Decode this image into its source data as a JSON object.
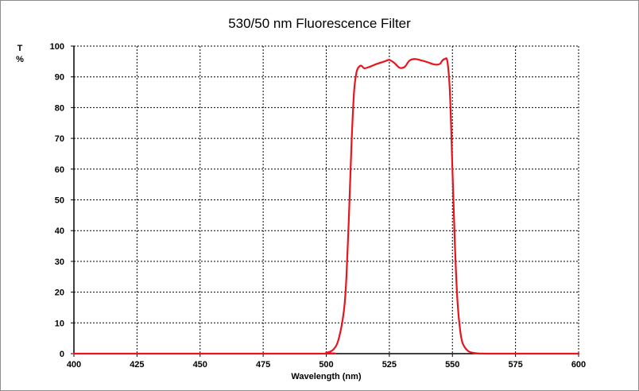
{
  "chart_data": {
    "type": "line",
    "title": "530/50 nm Fluorescence Filter",
    "xlabel": "Wavelength (nm)",
    "ylabel_line1": "T",
    "ylabel_line2": "%",
    "xlim": [
      400,
      600
    ],
    "ylim": [
      0,
      100
    ],
    "xticks": [
      400,
      425,
      450,
      475,
      500,
      525,
      550,
      575,
      600
    ],
    "yticks": [
      0,
      10,
      20,
      30,
      40,
      50,
      60,
      70,
      80,
      90,
      100
    ],
    "grid": true,
    "series": [
      {
        "color": "#e8141e",
        "x": [
          400,
          495,
          500,
          503,
          505,
          507,
          508,
          509,
          510,
          511,
          512,
          513,
          514,
          515,
          517,
          520,
          523,
          525,
          527,
          529,
          531,
          533,
          535,
          537,
          540,
          543,
          545,
          546,
          547,
          548,
          549,
          550,
          551,
          552,
          553,
          554,
          556,
          558,
          560,
          565,
          600
        ],
        "y": [
          0,
          0,
          0.3,
          1.5,
          5,
          14,
          25,
          45,
          68,
          85,
          91.5,
          93.3,
          93.6,
          92.8,
          93.2,
          94.2,
          95.0,
          95.5,
          94.5,
          93.0,
          93.2,
          95.3,
          95.8,
          95.5,
          94.8,
          94.0,
          94.2,
          95.3,
          95.8,
          95.0,
          85,
          60,
          35,
          17,
          8,
          3.5,
          1.0,
          0.3,
          0.1,
          0,
          0
        ]
      }
    ]
  }
}
